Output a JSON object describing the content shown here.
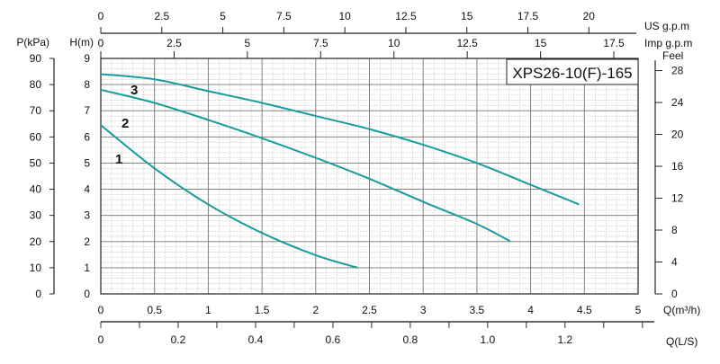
{
  "chart_data": {
    "type": "line",
    "title": "XPS26-10(F)-165",
    "xlabel": "Q(m³/h)",
    "ylabel": "H(m)",
    "xlim": [
      0,
      5
    ],
    "ylim": [
      0,
      9
    ],
    "grid": true,
    "x_ticks": [
      "0",
      "0.5",
      "1",
      "1.5",
      "2",
      "2.5",
      "3",
      "3.5",
      "4",
      "4.5",
      "5"
    ],
    "y_ticks": [
      "0",
      "1",
      "2",
      "3",
      "4",
      "5",
      "6",
      "7",
      "8",
      "9"
    ],
    "secondary_axes": {
      "pressure": {
        "label": "P(kPa)",
        "ticks": [
          "0",
          "10",
          "20",
          "30",
          "40",
          "50",
          "60",
          "70",
          "80",
          "90"
        ]
      },
      "feet": {
        "label": "Feel",
        "ticks": [
          "0",
          "4",
          "8",
          "12",
          "16",
          "20",
          "24",
          "28"
        ]
      },
      "us_gpm": {
        "label": "US  g.p.m",
        "ticks": [
          "0",
          "2.5",
          "5",
          "7.5",
          "10",
          "12.5",
          "15",
          "17.5",
          "20"
        ]
      },
      "imp_gpm": {
        "label": "Imp  g.p.m",
        "ticks": [
          "0",
          "2.5",
          "5",
          "7.5",
          "10",
          "12.5",
          "15",
          "17.5"
        ]
      },
      "liters_per_second": {
        "label": "Q(L/S)",
        "ticks": [
          "0",
          "0.2",
          "0.4",
          "0.6",
          "0.8",
          "1.0",
          "1.2"
        ]
      }
    },
    "line_color": "#1a9c9c",
    "series": [
      {
        "name": "1",
        "x": [
          0,
          0.5,
          1,
          1.5,
          2,
          2.39
        ],
        "y": [
          6.45,
          4.8,
          3.42,
          2.33,
          1.48,
          1.0
        ]
      },
      {
        "name": "2",
        "x": [
          0,
          0.5,
          1,
          1.5,
          2,
          2.5,
          3,
          3.5,
          3.81
        ],
        "y": [
          7.8,
          7.3,
          6.65,
          5.95,
          5.2,
          4.4,
          3.52,
          2.67,
          2.01
        ]
      },
      {
        "name": "3",
        "x": [
          0,
          0.5,
          1,
          1.5,
          2,
          2.5,
          3,
          3.5,
          4,
          4.45
        ],
        "y": [
          8.4,
          8.2,
          7.75,
          7.3,
          6.8,
          6.3,
          5.7,
          5.0,
          4.17,
          3.42
        ]
      }
    ]
  }
}
